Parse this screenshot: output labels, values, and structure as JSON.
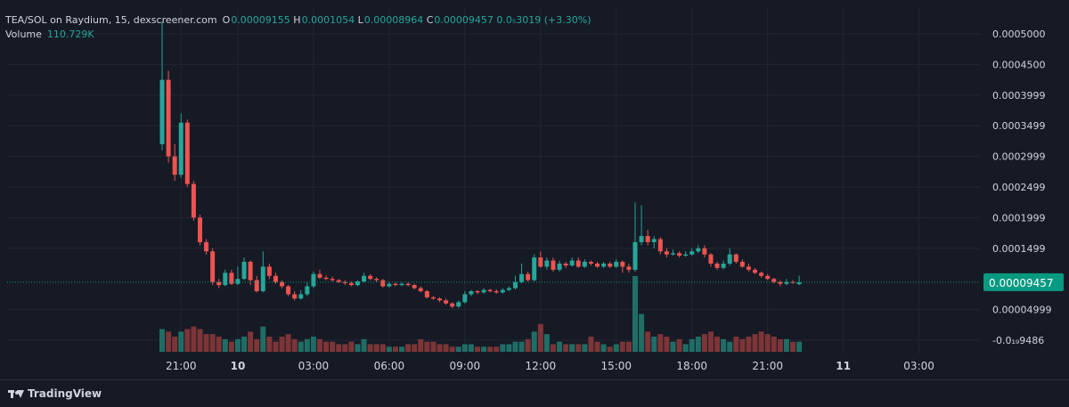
{
  "legend": {
    "pair": "TEA/SOL on Raydium, 15, dexscreener.com",
    "o_label": "O",
    "o": "0.00009155",
    "h_label": "H",
    "h": "0.0001054",
    "l_label": "L",
    "l": "0.00008964",
    "c_label": "C",
    "c": "0.00009457",
    "change": "0.0₅3019 (+3.30%)",
    "volume_label": "Volume",
    "volume": "110.729K"
  },
  "brand": {
    "name": "TradingView"
  },
  "colors": {
    "up": "#26a69a",
    "down": "#ef5350",
    "up_vol": "#1f6e66",
    "down_vol": "#7d3537",
    "price_badge": "#089981"
  },
  "chart_data": {
    "type": "candlestick",
    "y_axis_labels": [
      "0.0005000",
      "0.0004500",
      "0.0003999",
      "0.0003499",
      "0.0002999",
      "0.0002499",
      "0.0001999",
      "0.0001499",
      "0.00004999",
      "-0.0₁₉9486"
    ],
    "y_axis_values": [
      0.0005,
      0.00045,
      0.0004,
      0.00035,
      0.0003,
      0.00025,
      0.0002,
      0.00015,
      5e-05,
      0
    ],
    "ylim": [
      0,
      0.00052
    ],
    "last_price_label": "0.00009457",
    "last_price": 9.457e-05,
    "x_labels": [
      {
        "t": 3,
        "label": "21:00",
        "bold": false
      },
      {
        "t": 12,
        "label": "10",
        "bold": true
      },
      {
        "t": 24,
        "label": "03:00",
        "bold": false
      },
      {
        "t": 36,
        "label": "06:00",
        "bold": false
      },
      {
        "t": 48,
        "label": "09:00",
        "bold": false
      },
      {
        "t": 60,
        "label": "12:00",
        "bold": false
      },
      {
        "t": 72,
        "label": "15:00",
        "bold": false
      },
      {
        "t": 84,
        "label": "18:00",
        "bold": false
      },
      {
        "t": 96,
        "label": "21:00",
        "bold": false
      },
      {
        "t": 108,
        "label": "11",
        "bold": true
      },
      {
        "t": 120,
        "label": "03:00",
        "bold": false
      }
    ],
    "candles": [
      [
        0.00032,
        0.000425,
        0.00052,
        0.00031,
        9
      ],
      [
        0.000425,
        0.0003,
        0.00044,
        0.00029,
        8
      ],
      [
        0.0003,
        0.00027,
        0.00032,
        0.00026,
        6
      ],
      [
        0.00027,
        0.000355,
        0.00037,
        0.000265,
        8
      ],
      [
        0.000355,
        0.000255,
        0.00036,
        0.00025,
        9
      ],
      [
        0.000255,
        0.0002,
        0.00026,
        0.000195,
        10
      ],
      [
        0.0002,
        0.00016,
        0.000205,
        0.000155,
        9
      ],
      [
        0.00016,
        0.000145,
        0.000165,
        0.00014,
        7
      ],
      [
        0.000145,
        9.5e-05,
        0.00015,
        9e-05,
        7
      ],
      [
        9.5e-05,
        9e-05,
        0.0001,
        8.5e-05,
        6
      ],
      [
        9e-05,
        0.00011,
        0.000115,
        8.8e-05,
        5
      ],
      [
        0.00011,
        9.2e-05,
        0.000115,
        9e-05,
        4
      ],
      [
        9.2e-05,
        0.0001,
        0.00012,
        9e-05,
        5
      ],
      [
        0.0001,
        0.000128,
        0.000135,
        9.8e-05,
        6
      ],
      [
        0.000128,
        9.8e-05,
        0.00013,
        9e-05,
        8
      ],
      [
        9.8e-05,
        8e-05,
        0.000105,
        7.8e-05,
        5
      ],
      [
        8e-05,
        0.00012,
        0.000145,
        7.8e-05,
        10
      ],
      [
        0.00012,
        0.000105,
        0.000125,
        0.0001,
        6
      ],
      [
        0.000105,
        9.5e-05,
        0.00011,
        9.2e-05,
        4
      ],
      [
        9.5e-05,
        8.8e-05,
        9.8e-05,
        8.5e-05,
        6
      ],
      [
        8.8e-05,
        7.5e-05,
        9e-05,
        7.2e-05,
        7
      ],
      [
        7.5e-05,
        6.8e-05,
        8e-05,
        6.5e-05,
        5
      ],
      [
        6.8e-05,
        7.5e-05,
        8.2e-05,
        6.6e-05,
        4
      ],
      [
        7.5e-05,
        8.8e-05,
        9.5e-05,
        7.2e-05,
        5
      ],
      [
        8.8e-05,
        0.000108,
        0.000112,
        8.5e-05,
        6
      ],
      [
        0.000108,
        0.000102,
        0.000115,
        0.0001,
        5
      ],
      [
        0.000102,
        0.0001,
        0.000106,
        9.8e-05,
        4
      ],
      [
        0.0001,
        9.8e-05,
        0.000104,
        9.6e-05,
        4
      ],
      [
        9.8e-05,
        9.5e-05,
        0.0001,
        9.3e-05,
        3
      ],
      [
        9.5e-05,
        9.3e-05,
        9.8e-05,
        9e-05,
        3
      ],
      [
        9.3e-05,
        9e-05,
        9.6e-05,
        8.8e-05,
        4
      ],
      [
        9e-05,
        9.6e-05,
        9.8e-05,
        8.8e-05,
        3
      ],
      [
        9.6e-05,
        0.000105,
        0.00011,
        9.4e-05,
        5
      ],
      [
        0.000105,
        0.0001,
        0.000108,
        9.8e-05,
        3
      ],
      [
        0.0001,
        9.8e-05,
        0.000103,
        9.5e-05,
        3
      ],
      [
        9.8e-05,
        8.8e-05,
        0.0001,
        8.6e-05,
        3
      ],
      [
        8.8e-05,
        9.2e-05,
        9.5e-05,
        8.6e-05,
        2
      ],
      [
        9.2e-05,
        9e-05,
        9.4e-05,
        8.8e-05,
        2
      ],
      [
        9e-05,
        9.2e-05,
        9.4e-05,
        8.8e-05,
        2
      ],
      [
        9.2e-05,
        9e-05,
        9.5e-05,
        8.8e-05,
        3
      ],
      [
        9e-05,
        8.5e-05,
        9.2e-05,
        8.3e-05,
        3
      ],
      [
        8.5e-05,
        8e-05,
        8.8e-05,
        7.8e-05,
        5
      ],
      [
        8e-05,
        7e-05,
        8.2e-05,
        6.8e-05,
        4
      ],
      [
        7e-05,
        6.8e-05,
        7.2e-05,
        6.6e-05,
        4
      ],
      [
        6.8e-05,
        6.5e-05,
        7e-05,
        6.2e-05,
        3
      ],
      [
        6.5e-05,
        6e-05,
        6.8e-05,
        5.8e-05,
        3
      ],
      [
        6e-05,
        5.5e-05,
        6.2e-05,
        5.2e-05,
        2
      ],
      [
        5.5e-05,
        6.2e-05,
        6.5e-05,
        5.3e-05,
        2
      ],
      [
        6.2e-05,
        7.5e-05,
        8e-05,
        6e-05,
        3
      ],
      [
        7.5e-05,
        8e-05,
        8.2e-05,
        7.2e-05,
        3
      ],
      [
        8e-05,
        7.8e-05,
        8.2e-05,
        7.5e-05,
        2
      ],
      [
        7.8e-05,
        8.2e-05,
        8.5e-05,
        7.6e-05,
        2
      ],
      [
        8.2e-05,
        8e-05,
        8.4e-05,
        7.8e-05,
        2
      ],
      [
        8e-05,
        7.8e-05,
        8.3e-05,
        7.6e-05,
        2
      ],
      [
        7.8e-05,
        8.2e-05,
        8.5e-05,
        7.6e-05,
        3
      ],
      [
        8.2e-05,
        8.5e-05,
        8.8e-05,
        8e-05,
        3
      ],
      [
        8.5e-05,
        9.5e-05,
        0.000105,
        8.3e-05,
        4
      ],
      [
        9.5e-05,
        0.000108,
        0.000125,
        9.3e-05,
        4
      ],
      [
        0.000108,
        9.8e-05,
        0.000112,
        9.6e-05,
        5
      ],
      [
        9.8e-05,
        0.000135,
        0.00014,
        9.6e-05,
        8
      ],
      [
        0.000135,
        0.00012,
        0.000145,
        0.000118,
        11
      ],
      [
        0.00012,
        0.00013,
        0.000135,
        0.000115,
        7
      ],
      [
        0.00013,
        0.000115,
        0.000135,
        0.000112,
        3
      ],
      [
        0.000115,
        0.000125,
        0.00013,
        0.000112,
        4
      ],
      [
        0.000125,
        0.000122,
        0.000128,
        0.000118,
        3
      ],
      [
        0.000122,
        0.00013,
        0.000135,
        0.00012,
        3
      ],
      [
        0.00013,
        0.00012,
        0.000135,
        0.000118,
        3
      ],
      [
        0.00012,
        0.000128,
        0.000132,
        0.000118,
        3
      ],
      [
        0.000128,
        0.000125,
        0.00013,
        0.000122,
        6
      ],
      [
        0.000125,
        0.00012,
        0.000128,
        0.000118,
        4
      ],
      [
        0.00012,
        0.000125,
        0.000128,
        0.000118,
        3
      ],
      [
        0.000125,
        0.00012,
        0.000128,
        0.000118,
        2
      ],
      [
        0.00012,
        0.000128,
        0.000132,
        0.000118,
        3
      ],
      [
        0.000128,
        0.00012,
        0.00013,
        0.00011,
        4
      ],
      [
        0.00012,
        0.000115,
        0.000125,
        0.00011,
        4
      ],
      [
        0.000115,
        0.00016,
        0.000225,
        0.000112,
        30
      ],
      [
        0.00016,
        0.00017,
        0.00022,
        0.000155,
        15
      ],
      [
        0.00017,
        0.00016,
        0.00018,
        0.000155,
        8
      ],
      [
        0.00016,
        0.000165,
        0.00017,
        0.00015,
        6
      ],
      [
        0.000165,
        0.000145,
        0.000168,
        0.00014,
        7
      ],
      [
        0.000145,
        0.00014,
        0.00015,
        0.000135,
        6
      ],
      [
        0.00014,
        0.000142,
        0.000148,
        0.000138,
        4
      ],
      [
        0.000142,
        0.000138,
        0.000145,
        0.000135,
        5
      ],
      [
        0.000138,
        0.00014,
        0.000145,
        0.000136,
        3
      ],
      [
        0.00014,
        0.000145,
        0.00015,
        0.000138,
        5
      ],
      [
        0.000145,
        0.00015,
        0.000155,
        0.000142,
        6
      ],
      [
        0.00015,
        0.00014,
        0.000155,
        0.000135,
        7
      ],
      [
        0.00014,
        0.000125,
        0.000142,
        0.00012,
        8
      ],
      [
        0.000125,
        0.000118,
        0.000128,
        0.000115,
        6
      ],
      [
        0.000118,
        0.000125,
        0.00013,
        0.000116,
        5
      ],
      [
        0.000125,
        0.00014,
        0.00015,
        0.000122,
        4
      ],
      [
        0.00014,
        0.000128,
        0.000142,
        0.000125,
        6
      ],
      [
        0.000128,
        0.00012,
        0.000132,
        0.000118,
        5
      ],
      [
        0.00012,
        0.000115,
        0.000125,
        0.000112,
        6
      ],
      [
        0.000115,
        0.00011,
        0.000118,
        0.000108,
        7
      ],
      [
        0.00011,
        0.000105,
        0.000112,
        0.000102,
        8
      ],
      [
        0.000105,
        0.0001,
        0.000108,
        9.8e-05,
        7
      ],
      [
        0.0001,
        9.5e-05,
        0.000102,
        9.3e-05,
        6
      ],
      [
        9.5e-05,
        9.2e-05,
        9.8e-05,
        8.8e-05,
        5
      ],
      [
        9.2e-05,
        9.5e-05,
        0.0001,
        9e-05,
        5
      ],
      [
        9.5e-05,
        9.4e-05,
        9.8e-05,
        9.2e-05,
        4
      ],
      [
        9.155e-05,
        9.457e-05,
        0.0001054,
        8.964e-05,
        4
      ]
    ]
  }
}
